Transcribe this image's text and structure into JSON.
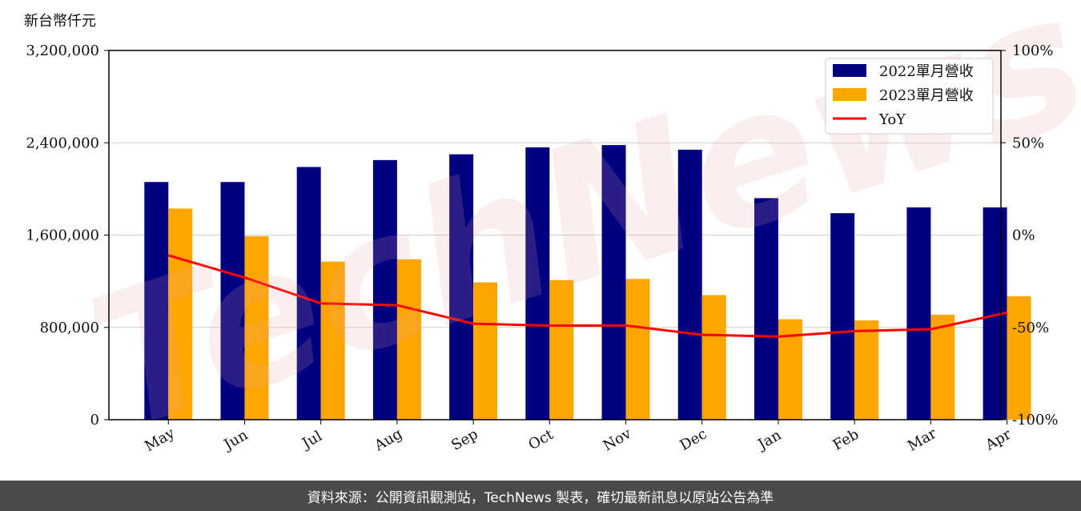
{
  "unit_label": "新台幣仟元",
  "footer_text": "資料來源：公開資訊觀測站，TechNews 製表，確切最新訊息以原站公告為準",
  "watermark": "TechNews",
  "colors": {
    "series_2022": "#000080",
    "series_2023": "#FFA500",
    "yoy": "#FF0000",
    "footer_bg": "#4a4a4a"
  },
  "chart_data": {
    "type": "bar",
    "categories": [
      "May",
      "Jun",
      "Jul",
      "Aug",
      "Sep",
      "Oct",
      "Nov",
      "Dec",
      "Jan",
      "Feb",
      "Mar",
      "Apr"
    ],
    "series": [
      {
        "name": "2022單月營收",
        "values": [
          2060000,
          2060000,
          2190000,
          2250000,
          2300000,
          2360000,
          2380000,
          2340000,
          1920000,
          1790000,
          1840000,
          1840000
        ]
      },
      {
        "name": "2023單月營收",
        "values": [
          1830000,
          1590000,
          1370000,
          1390000,
          1190000,
          1210000,
          1220000,
          1080000,
          870000,
          860000,
          910000,
          1070000
        ]
      },
      {
        "name": "YoY",
        "type": "line",
        "axis": "right",
        "values": [
          -11,
          -23,
          -37,
          -38,
          -48,
          -49,
          -49,
          -54,
          -55,
          -52,
          -51,
          -42
        ]
      }
    ],
    "ylim": [
      0,
      3200000
    ],
    "yticks": [
      "0",
      "800,000",
      "1,600,000",
      "2,400,000",
      "3,200,000"
    ],
    "y2lim": [
      -100,
      100
    ],
    "y2ticks": [
      "-100%",
      "-50%",
      "0%",
      "50%",
      "100%"
    ],
    "grid": true,
    "legend": "top-right"
  }
}
